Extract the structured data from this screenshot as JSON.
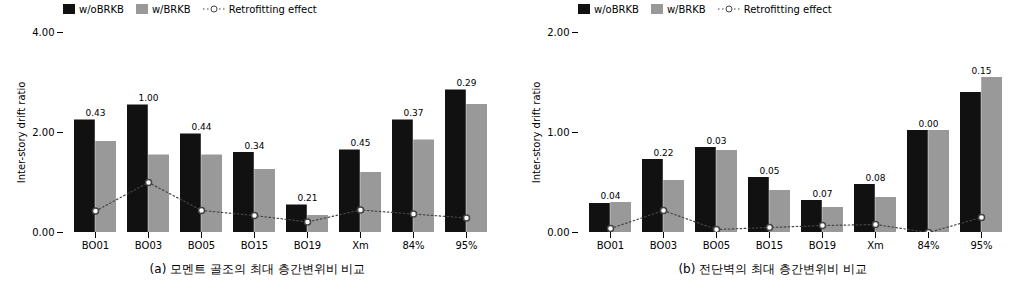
{
  "chart_data": [
    {
      "type": "bar",
      "categories": [
        "BO01",
        "BO03",
        "BO05",
        "BO15",
        "BO19",
        "Xm",
        "84%",
        "95%"
      ],
      "series": [
        {
          "name": "w/oBRKB",
          "color": "#111111",
          "values": [
            2.25,
            2.55,
            1.97,
            1.6,
            0.55,
            1.65,
            2.25,
            2.85
          ]
        },
        {
          "name": "w/BRKB",
          "color": "#999999",
          "values": [
            1.82,
            1.55,
            1.55,
            1.26,
            0.34,
            1.2,
            1.85,
            2.56
          ]
        },
        {
          "name": "Retrofitting effect",
          "type": "line",
          "color": "#444444",
          "marker": "circle",
          "line_style": "dotted",
          "data_labels": true,
          "values": [
            0.43,
            1.0,
            0.44,
            0.34,
            0.21,
            0.45,
            0.37,
            0.29
          ],
          "value_labels": [
            "0.43",
            "1.00",
            "0.44",
            "0.34",
            "0.21",
            "0.45",
            "0.37",
            "0.29"
          ]
        }
      ],
      "ylim": [
        0,
        4.0
      ],
      "yticks": [
        {
          "value": 0,
          "label": "0.00"
        },
        {
          "value": 2,
          "label": "2.00"
        },
        {
          "value": 4,
          "label": "4.00"
        }
      ],
      "ylabel": "Inter-story drift ratio",
      "caption": "(a) 모멘트 골조의 최대 층간변위비 비교",
      "grid": false,
      "legend": "upper left"
    },
    {
      "type": "bar",
      "categories": [
        "BO01",
        "BO03",
        "BO05",
        "BO15",
        "BO19",
        "Xm",
        "84%",
        "95%"
      ],
      "series": [
        {
          "name": "w/oBRKB",
          "color": "#111111",
          "values": [
            0.29,
            0.73,
            0.85,
            0.55,
            0.32,
            0.48,
            1.02,
            1.4
          ]
        },
        {
          "name": "w/BRKB",
          "color": "#999999",
          "values": [
            0.3,
            0.52,
            0.82,
            0.42,
            0.25,
            0.35,
            1.02,
            1.55
          ]
        },
        {
          "name": "Retrofitting effect",
          "type": "line",
          "color": "#444444",
          "marker": "circle",
          "line_style": "dotted",
          "data_labels": true,
          "values": [
            0.04,
            0.22,
            0.03,
            0.05,
            0.07,
            0.08,
            0.0,
            0.15
          ],
          "value_labels": [
            "0.04",
            "0.22",
            "0.03",
            "0.05",
            "0.07",
            "0.08",
            "0.00",
            "0.15"
          ]
        }
      ],
      "ylim": [
        0,
        2.0
      ],
      "yticks": [
        {
          "value": 0,
          "label": "0.00"
        },
        {
          "value": 1,
          "label": "1.00"
        },
        {
          "value": 2,
          "label": "2.00"
        }
      ],
      "ylabel": "Inter-story drift ratio",
      "caption": "(b) 전단벽의 최대 층간변위비 비교",
      "grid": false,
      "legend": "upper left"
    }
  ]
}
